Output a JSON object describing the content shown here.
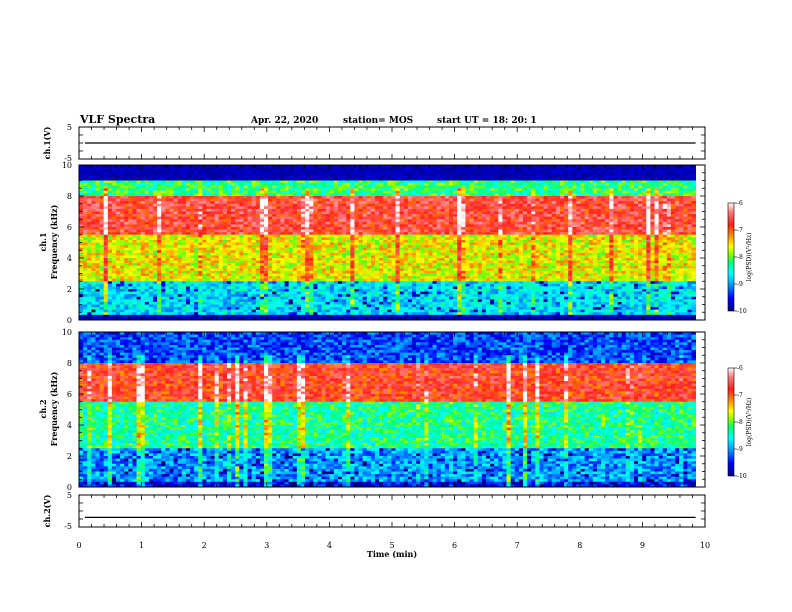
{
  "header": {
    "title": "VLF Spectra",
    "date": "Apr. 22, 2020",
    "station": "station= MOS",
    "start": "start UT = 18: 20: 1"
  },
  "chart_data": [
    {
      "type": "line",
      "name": "waveform-ch1",
      "ylabel": "ch.1(V)",
      "ylim": [
        -5,
        5
      ],
      "yticks": [
        "5",
        "-5"
      ],
      "xlim": [
        0,
        10
      ],
      "level": 0
    },
    {
      "type": "heatmap",
      "name": "spectrogram-ch1",
      "ylabel_line1": "ch.1",
      "ylabel_line2": "Frequency (kHz)",
      "ylim": [
        0,
        10
      ],
      "yticks": [
        "0",
        "2",
        "4",
        "6",
        "8",
        "10"
      ],
      "xlim": [
        0,
        10
      ],
      "data_end_min": 9.85,
      "bands": [
        {
          "from_khz": 0,
          "to_khz": 0.3,
          "level": -10
        },
        {
          "from_khz": 0.3,
          "to_khz": 2.5,
          "level": -8.7
        },
        {
          "from_khz": 2.5,
          "to_khz": 5.5,
          "level": -7.6
        },
        {
          "from_khz": 5.5,
          "to_khz": 8,
          "level": -6.7
        },
        {
          "from_khz": 8,
          "to_khz": 9,
          "level": -8.2
        },
        {
          "from_khz": 9,
          "to_khz": 10,
          "level": -10
        }
      ],
      "colorbar": {
        "label": "log(PSD)(V²/Hz)",
        "ticks": [
          "-6",
          "-7",
          "-8",
          "-9",
          "-10"
        ],
        "range": [
          -10,
          -6
        ]
      }
    },
    {
      "type": "heatmap",
      "name": "spectrogram-ch2",
      "ylabel_line1": "ch.2",
      "ylabel_line2": "Frequency (kHz)",
      "ylim": [
        0,
        10
      ],
      "yticks": [
        "0",
        "2",
        "4",
        "6",
        "8",
        "10"
      ],
      "xlim": [
        0,
        10
      ],
      "data_end_min": 9.85,
      "bands": [
        {
          "from_khz": 0,
          "to_khz": 0.3,
          "level": -9.6
        },
        {
          "from_khz": 0.3,
          "to_khz": 2.5,
          "level": -9.0
        },
        {
          "from_khz": 2.5,
          "to_khz": 5.5,
          "level": -8.3
        },
        {
          "from_khz": 5.5,
          "to_khz": 8,
          "level": -6.8
        },
        {
          "from_khz": 8,
          "to_khz": 10,
          "level": -9.3
        }
      ],
      "colorbar": {
        "label": "log(PSD)(V²/Hz)",
        "ticks": [
          "-6",
          "-7",
          "-8",
          "-9",
          "-10"
        ],
        "range": [
          -10,
          -6
        ]
      }
    },
    {
      "type": "line",
      "name": "waveform-ch2",
      "ylabel": "ch.2(V)",
      "ylim": [
        -5,
        5
      ],
      "yticks": [
        "5",
        "-5"
      ],
      "xlim": [
        0,
        10
      ],
      "level": -2
    }
  ],
  "x_axis": {
    "label": "Time (min)",
    "ticks": [
      "0",
      "1",
      "2",
      "3",
      "4",
      "5",
      "6",
      "7",
      "8",
      "9",
      "10"
    ]
  },
  "colors": {
    "scale": [
      "#000080",
      "#0000ff",
      "#00a0ff",
      "#00ffff",
      "#00ff80",
      "#80ff00",
      "#ffff00",
      "#ffa000",
      "#ff3020",
      "#ff0000",
      "#ffffff"
    ]
  }
}
